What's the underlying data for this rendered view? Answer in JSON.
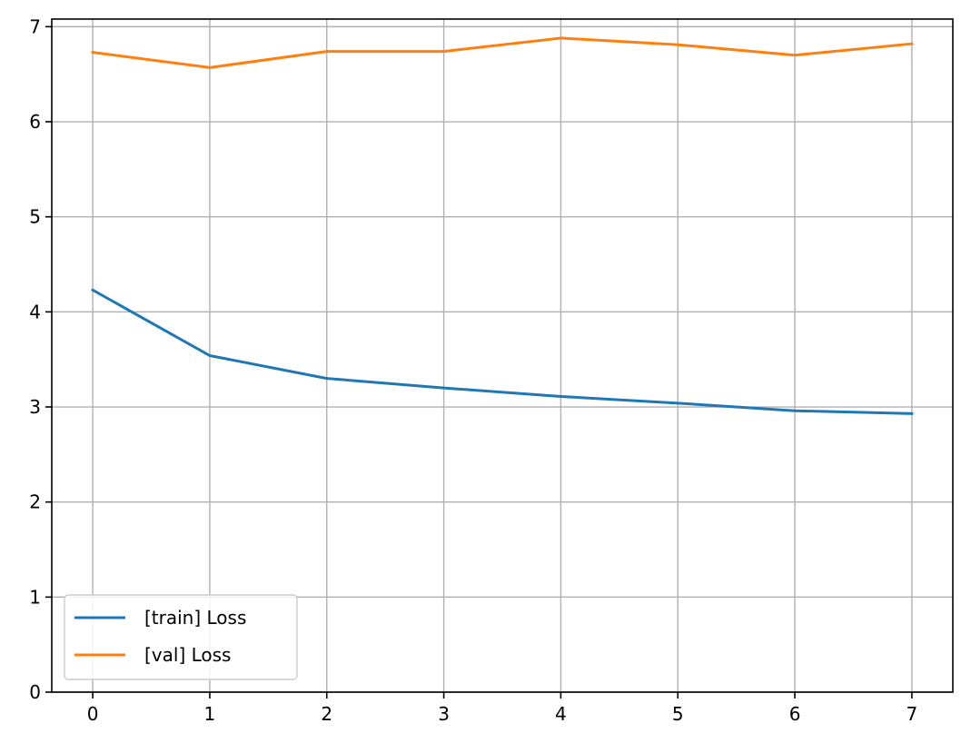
{
  "chart_data": {
    "type": "line",
    "title": "",
    "xlabel": "",
    "ylabel": "",
    "x": [
      0,
      1,
      2,
      3,
      4,
      5,
      6,
      7
    ],
    "xlim": [
      -0.35,
      7.35
    ],
    "ylim": [
      0,
      7.08
    ],
    "xticks": [
      0,
      1,
      2,
      3,
      4,
      5,
      6,
      7
    ],
    "yticks": [
      0,
      1,
      2,
      3,
      4,
      5,
      6,
      7
    ],
    "grid": true,
    "legend_position": "lower-left",
    "series": [
      {
        "name": "[train] Loss",
        "color": "#1f77b4",
        "values": [
          4.23,
          3.54,
          3.3,
          3.2,
          3.11,
          3.04,
          2.96,
          2.93
        ]
      },
      {
        "name": "[val] Loss",
        "color": "#ff7f0e",
        "values": [
          6.73,
          6.57,
          6.74,
          6.74,
          6.88,
          6.81,
          6.7,
          6.82
        ]
      }
    ]
  }
}
